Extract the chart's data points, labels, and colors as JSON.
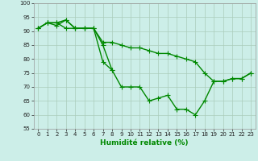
{
  "title": "",
  "xlabel": "Humidité relative (%)",
  "ylabel": "",
  "xlim": [
    -0.5,
    23.5
  ],
  "ylim": [
    55,
    100
  ],
  "xticks": [
    0,
    1,
    2,
    3,
    4,
    5,
    6,
    7,
    8,
    9,
    10,
    11,
    12,
    13,
    14,
    15,
    16,
    17,
    18,
    19,
    20,
    21,
    22,
    23
  ],
  "yticks": [
    55,
    60,
    65,
    70,
    75,
    80,
    85,
    90,
    95,
    100
  ],
  "bg_color": "#cceee8",
  "grid_color": "#aaccbb",
  "line_color": "#008800",
  "line1_x": [
    0,
    1,
    2,
    3,
    4,
    5,
    6,
    7,
    8
  ],
  "line1_y": [
    91,
    93,
    93,
    94,
    91,
    91,
    91,
    85,
    76
  ],
  "line2_x": [
    0,
    1,
    2,
    3,
    4,
    5,
    6,
    7,
    8,
    9,
    10,
    11,
    12,
    13,
    14,
    15,
    16,
    17,
    18,
    19,
    20,
    21,
    22,
    23
  ],
  "line2_y": [
    91,
    93,
    93,
    91,
    91,
    91,
    91,
    86,
    86,
    85,
    84,
    84,
    83,
    82,
    82,
    81,
    80,
    79,
    75,
    72,
    72,
    73,
    73,
    75
  ],
  "line3_x": [
    0,
    1,
    2,
    3,
    4,
    5,
    6,
    7,
    8,
    9,
    10,
    11,
    12,
    13,
    14,
    15,
    16,
    17,
    18,
    19,
    20,
    21,
    22,
    23
  ],
  "line3_y": [
    91,
    93,
    92,
    94,
    91,
    91,
    91,
    79,
    76,
    70,
    70,
    70,
    65,
    66,
    67,
    62,
    62,
    60,
    65,
    72,
    72,
    73,
    73,
    75
  ],
  "marker": "+",
  "markersize": 4,
  "linewidth": 1.0
}
